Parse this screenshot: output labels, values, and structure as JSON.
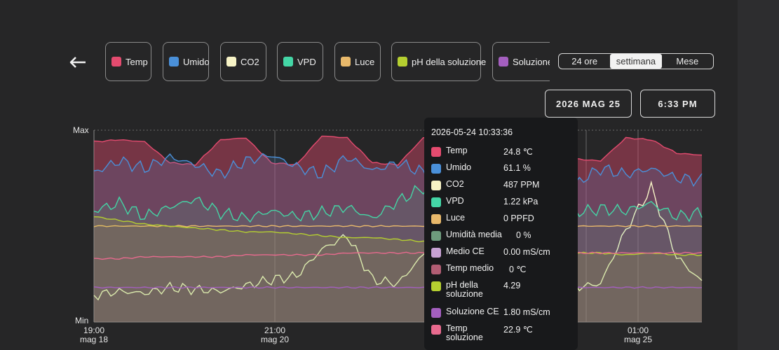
{
  "colors": {
    "temp": "#e44b6f",
    "umido": "#4a90d9",
    "co2": "#f7f3c6",
    "vpd": "#44d6a6",
    "luce": "#e9b96b",
    "umidita_media": "#6e9c7d",
    "medio_ce": "#c8a2d3",
    "temp_medio": "#b15d73",
    "ph": "#b5cf30",
    "soluzione_ce": "#a45fbf",
    "temp_soluzione": "#e86a8e"
  },
  "nav": {
    "back_icon": "arrow-left-icon"
  },
  "chips": [
    {
      "label": "Temp",
      "color": "#e44b6f"
    },
    {
      "label": "Umido",
      "color": "#4a90d9"
    },
    {
      "label": "CO2",
      "color": "#f7f3c6"
    },
    {
      "label": "VPD",
      "color": "#44d6a6"
    },
    {
      "label": "Luce",
      "color": "#e9b96b"
    },
    {
      "label": "pH della soluzione",
      "color": "#b5cf30"
    },
    {
      "label": "Soluzione CE",
      "color": "#a45fbf"
    }
  ],
  "range": {
    "options": [
      "24 ore",
      "settimana",
      "Mese"
    ],
    "selected": "settimana"
  },
  "date_button": "2026 MAG 25",
  "time_button": "6:33 PM",
  "chart_data": {
    "type": "area",
    "ylabel_top": "Max",
    "ylabel_bottom": "Min",
    "x_ticks": [
      {
        "time": "19:00",
        "date": "mag 18"
      },
      {
        "time": "21:00",
        "date": "mag 20"
      },
      {
        "time": "01:00",
        "date": "mag 25"
      }
    ],
    "grid": true,
    "series": [
      {
        "name": "Temp",
        "values": [
          0.94,
          0.95,
          0.94,
          0.83,
          0.82,
          0.95,
          0.96,
          0.83,
          0.82,
          0.97,
          0.96,
          0.83,
          0.82,
          0.96,
          0.96,
          0.85,
          0.84,
          0.97,
          0.96,
          0.85,
          0.84,
          0.96,
          0.95,
          0.88,
          0.87
        ]
      },
      {
        "name": "Umido",
        "values": [
          0.78,
          0.84,
          0.8,
          0.86,
          0.82,
          0.77,
          0.84,
          0.87,
          0.81,
          0.77,
          0.86,
          0.79,
          0.83,
          0.78,
          0.76,
          0.72,
          0.83,
          0.78,
          0.74,
          0.72,
          0.8,
          0.77,
          0.8,
          0.75,
          0.74
        ]
      },
      {
        "name": "CO2",
        "values": [
          0.14,
          0.16,
          0.15,
          0.18,
          0.17,
          0.16,
          0.19,
          0.22,
          0.24,
          0.38,
          0.45,
          0.22,
          0.2,
          0.35,
          0.52,
          0.4,
          0.2,
          0.19,
          0.17,
          0.18,
          0.2,
          0.48,
          0.7,
          0.34,
          0.21
        ]
      },
      {
        "name": "VPD",
        "values": [
          0.58,
          0.62,
          0.55,
          0.6,
          0.64,
          0.57,
          0.54,
          0.58,
          0.55,
          0.57,
          0.6,
          0.54,
          0.63,
          0.7,
          0.6,
          0.56,
          0.58,
          0.55,
          0.6,
          0.57,
          0.59,
          0.58,
          0.62,
          0.55,
          0.57
        ]
      },
      {
        "name": "Luce",
        "values": [
          0.5,
          0.5,
          0.5,
          0.5,
          0.5,
          0.5,
          0.5,
          0.5,
          0.5,
          0.5,
          0.5,
          0.5,
          0.5,
          0.5,
          0.5,
          0.5,
          0.5,
          0.5,
          0.5,
          0.5,
          0.5,
          0.5,
          0.5,
          0.5,
          0.5
        ]
      },
      {
        "name": "pH della soluzione",
        "values": [
          0.55,
          0.53,
          0.51,
          0.5,
          0.49,
          0.48,
          0.47,
          0.47,
          0.46,
          0.45,
          0.44,
          0.44,
          0.43,
          0.42,
          0.4,
          0.39,
          0.38,
          0.37,
          0.37,
          0.36,
          0.36,
          0.35,
          0.36,
          0.35,
          0.35
        ]
      },
      {
        "name": "Soluzione CE",
        "values": [
          0.18,
          0.18,
          0.18,
          0.18,
          0.18,
          0.18,
          0.18,
          0.18,
          0.18,
          0.18,
          0.18,
          0.18,
          0.18,
          0.18,
          0.18,
          0.18,
          0.18,
          0.18,
          0.18,
          0.18,
          0.18,
          0.18,
          0.18,
          0.18,
          0.18
        ]
      },
      {
        "name": "Temp soluzione",
        "values": [
          0.33,
          0.33,
          0.34,
          0.34,
          0.34,
          0.34,
          0.35,
          0.35,
          0.35,
          0.35,
          0.36,
          0.36,
          0.36,
          0.36,
          0.36,
          0.36,
          0.36,
          0.36,
          0.36,
          0.36,
          0.36,
          0.36,
          0.36,
          0.36,
          0.36
        ]
      }
    ]
  },
  "tooltip": {
    "timestamp": "2026-05-24 10:33:36",
    "rows": [
      {
        "name": "Temp",
        "value": "24.8 ℃",
        "color": "#e44b6f"
      },
      {
        "name": "Umido",
        "value": "61.1 %",
        "color": "#4a90d9"
      },
      {
        "name": "CO2",
        "value": "487 PPM",
        "color": "#f7f3c6"
      },
      {
        "name": "VPD",
        "value": "1.22 kPa",
        "color": "#44d6a6"
      },
      {
        "name": "Luce",
        "value": "0 PPFD",
        "color": "#e9b96b"
      },
      {
        "name": "Umidità media",
        "value": "0 %",
        "color": "#6e9c7d"
      },
      {
        "name": "Medio CE",
        "value": "0.00 mS/cm",
        "color": "#c8a2d3"
      },
      {
        "name": "Temp medio",
        "value": "0 ℃",
        "color": "#b15d73"
      },
      {
        "name": "pH della soluzione",
        "value": "4.29",
        "color": "#b5cf30"
      },
      {
        "name": "Soluzione CE",
        "value": "1.80 mS/cm",
        "color": "#a45fbf"
      },
      {
        "name": "Temp soluzione",
        "value": "22.9 ℃",
        "color": "#e86a8e"
      }
    ]
  }
}
